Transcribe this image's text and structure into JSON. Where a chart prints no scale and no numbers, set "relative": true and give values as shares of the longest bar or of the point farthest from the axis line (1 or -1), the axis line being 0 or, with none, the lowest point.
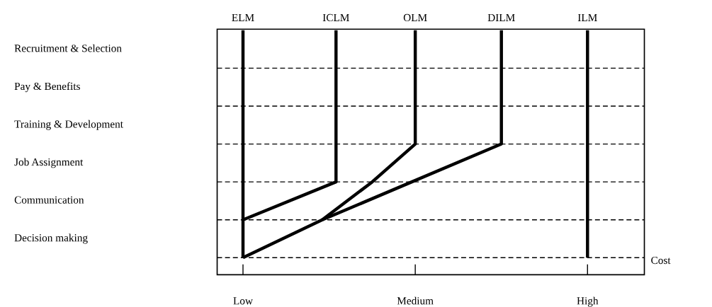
{
  "chart_data": {
    "type": "line",
    "orientation": "horizontal",
    "relative": true,
    "categories": [
      null,
      "Recruitment & Selection",
      "Pay & Benefits",
      "Training & Development",
      "Job Assignment",
      "Communication",
      "Decision making"
    ],
    "series": [
      {
        "name": "ELM",
        "color": "#000000",
        "values": [
          0,
          0,
          0,
          0,
          0,
          0,
          0
        ]
      },
      {
        "name": "ICLM",
        "color": "#000000",
        "values": [
          0.27,
          0.27,
          0.27,
          0.27,
          0.27,
          0,
          null
        ]
      },
      {
        "name": "OLM",
        "color": "#000000",
        "values": [
          0.5,
          0.5,
          0.5,
          0.5,
          0.375,
          0.23,
          null
        ]
      },
      {
        "name": "DILM",
        "color": "#000000",
        "values": [
          0.75,
          0.75,
          0.75,
          0.75,
          0.49,
          0.23,
          0
        ]
      },
      {
        "name": "ILM",
        "color": "#000000",
        "values": [
          1,
          1,
          1,
          1,
          1,
          1,
          1
        ]
      }
    ],
    "annotations": [
      "Low",
      "Medium",
      "High",
      "Cost"
    ],
    "grid": "y",
    "line_style": "solid",
    "marker": "none",
    "legend": false
  }
}
